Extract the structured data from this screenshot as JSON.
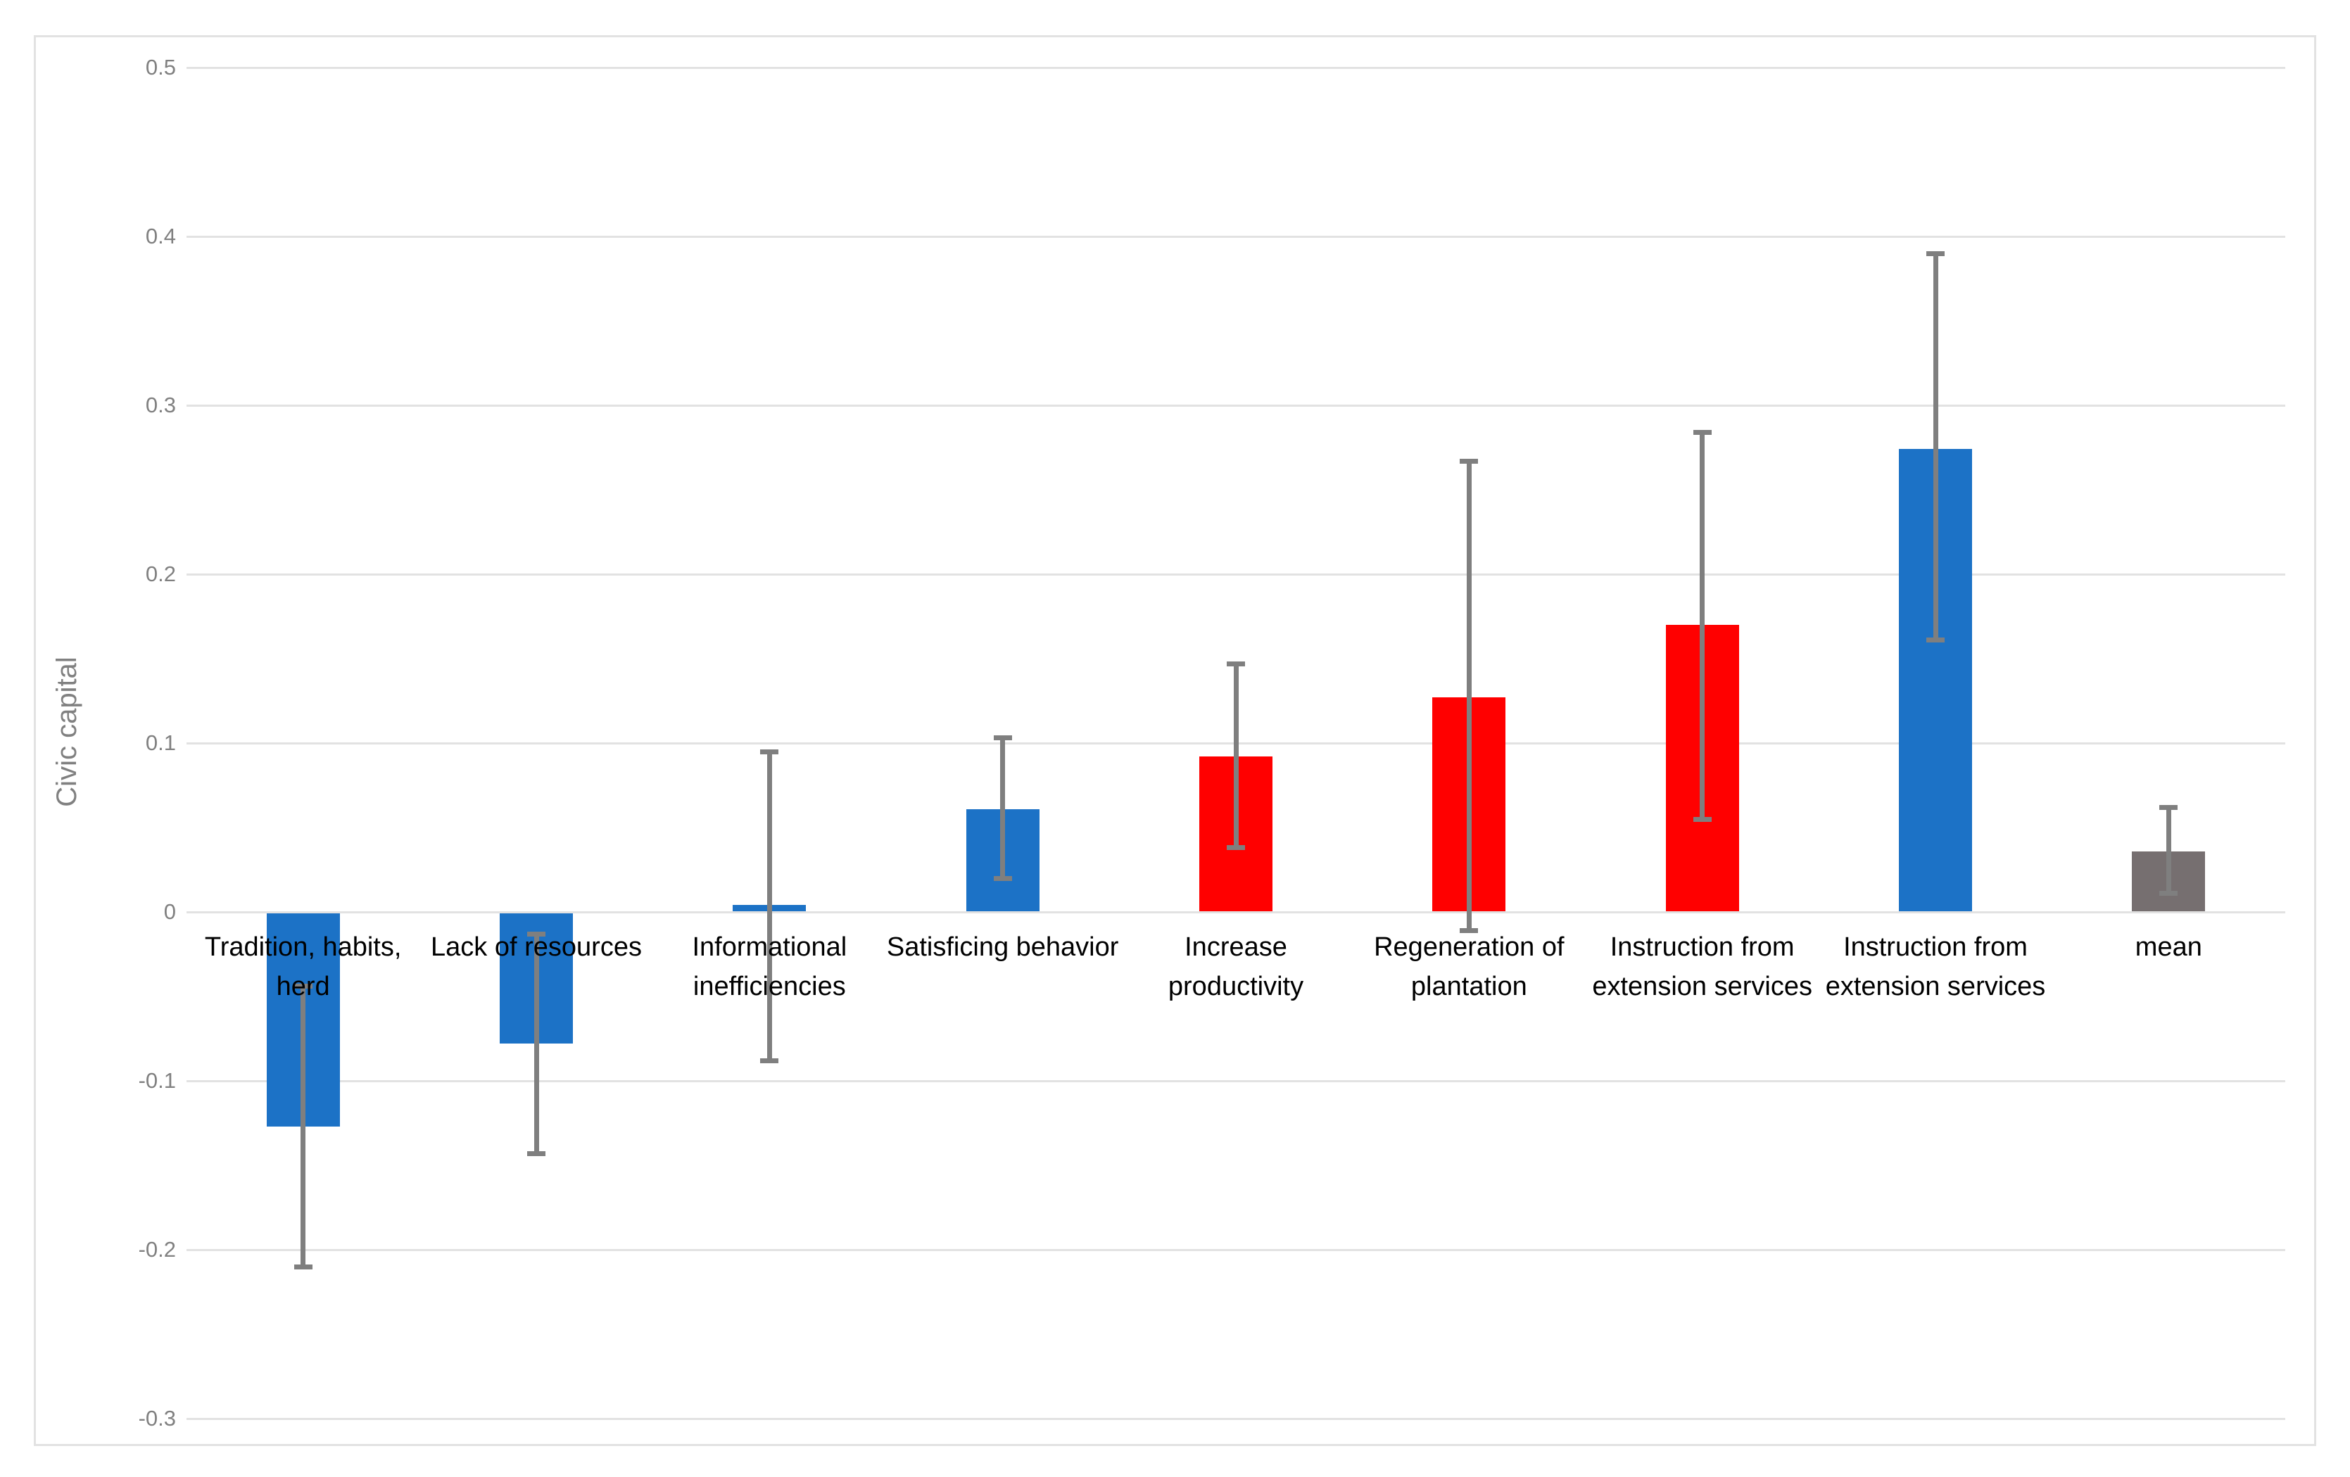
{
  "chart_data": {
    "type": "bar",
    "title": "",
    "ylabel": "Civic capital",
    "xlabel": "",
    "ylim": [
      -0.3,
      0.5
    ],
    "ytick_step": 0.1,
    "ytick_labels": [
      "0.5",
      "0.4",
      "0.3",
      "0.2",
      "0.1",
      "0",
      "-0.1",
      "-0.2",
      "-0.3"
    ],
    "grid": true,
    "legend": "none",
    "categories": [
      "Tradition, habits,\nherd",
      "Lack of resources",
      "Informational\ninefficiencies",
      "Satisficing behavior",
      "Increase\nproductivity",
      "Regeneration of\nplantation",
      "Instruction from\nextension services",
      "Instruction from\nextension services",
      "mean"
    ],
    "series": [
      {
        "name": "Civic capital",
        "values": [
          -0.127,
          -0.078,
          0.004,
          0.061,
          0.092,
          0.127,
          0.17,
          0.274,
          0.036
        ],
        "error_low": [
          -0.21,
          -0.143,
          -0.088,
          0.02,
          0.038,
          -0.011,
          0.055,
          0.161,
          0.011
        ],
        "error_high": [
          -0.044,
          -0.013,
          0.095,
          0.103,
          0.147,
          0.267,
          0.284,
          0.39,
          0.062
        ]
      }
    ],
    "bar_color_names": [
      "blue",
      "blue",
      "blue",
      "blue",
      "red",
      "red",
      "red",
      "blue",
      "gray"
    ],
    "colors": {
      "blue": "#1c72c6",
      "red": "#ff0000",
      "gray": "#766f70",
      "error_bar": "#7f7f7f",
      "gridline": "#e2e2e2",
      "frame_border": "#e2e2e2",
      "tick_text": "#808080",
      "axis_title_text": "#808080",
      "category_text": "#000000",
      "background": "#ffffff"
    }
  }
}
